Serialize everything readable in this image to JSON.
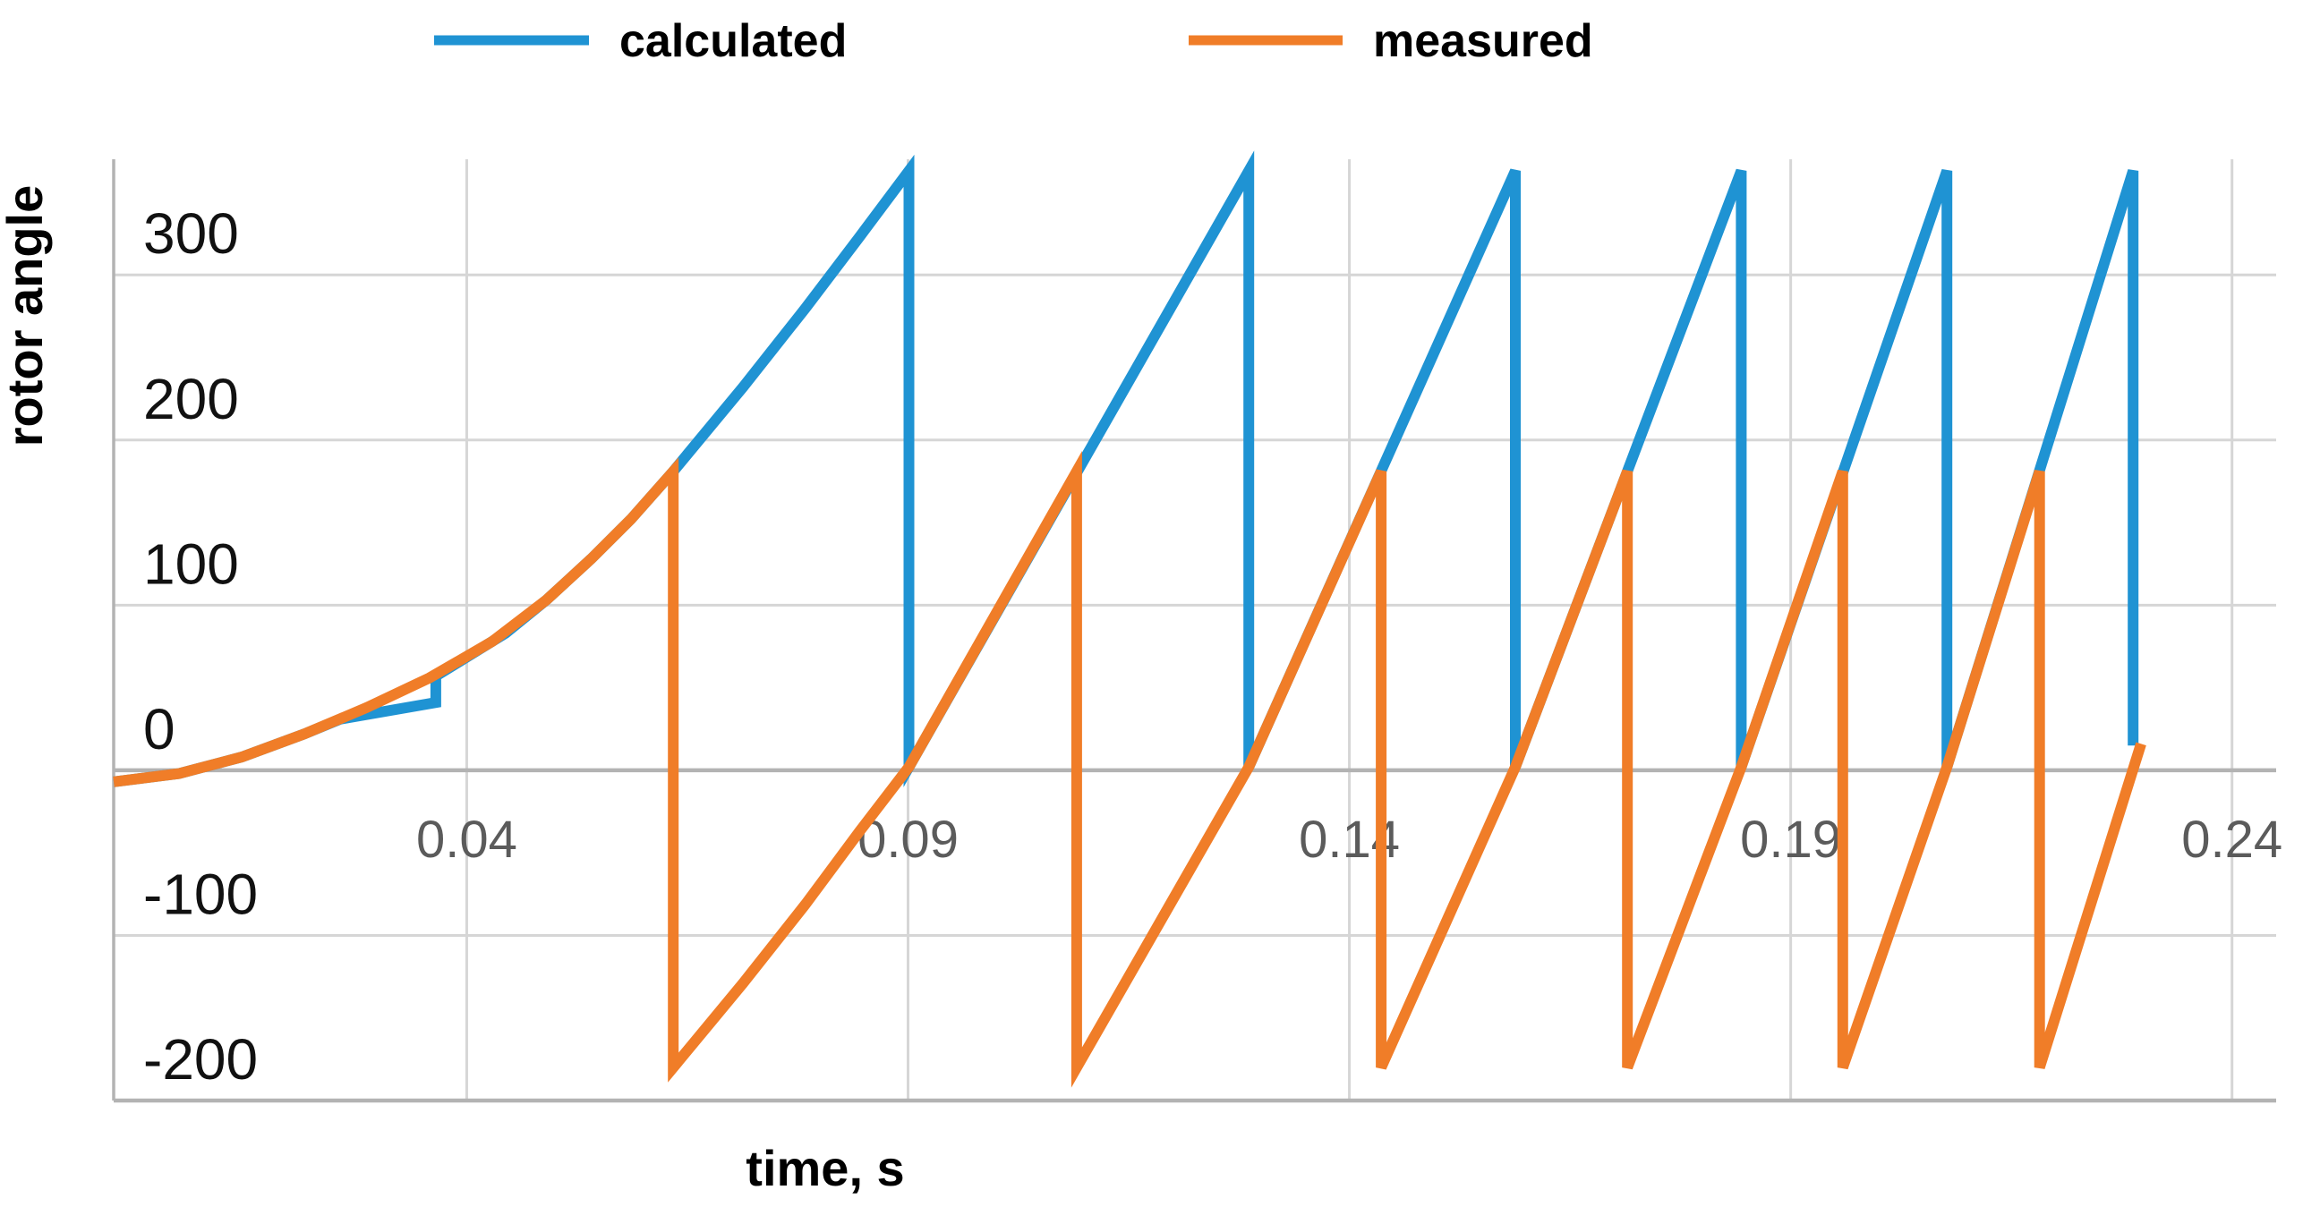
{
  "figure": {
    "background": "#ffffff"
  },
  "legend": {
    "position": "top",
    "items": [
      {
        "label": "calculated",
        "color": "#1f93d3"
      },
      {
        "label": "measured",
        "color": "#f07d28"
      }
    ]
  },
  "axes": {
    "y_title": "rotor angle",
    "x_title": "time, s",
    "y_tick_labels": [
      "300",
      "200",
      "100",
      "0",
      "-100",
      "-200"
    ],
    "x_tick_labels": [
      "0.04",
      "0.09",
      "0.14",
      "0.19",
      "0.24"
    ],
    "tick_label_color_x": "#5b5b5b",
    "tick_label_color_y": "#111111",
    "gridline_color": "#d6d6d6",
    "axis_line_color": "#b3b3b3"
  },
  "chart_data": {
    "type": "line",
    "title": "",
    "xlabel": "time, s",
    "ylabel": "rotor angle",
    "xlim": [
      0,
      0.245
    ],
    "ylim": [
      -200,
      370
    ],
    "grid": true,
    "legend_position": "top",
    "x_ticks": [
      {
        "label": "0.04",
        "t": 0.04
      },
      {
        "label": "0.09",
        "t": 0.09
      },
      {
        "label": "0.14",
        "t": 0.14
      },
      {
        "label": "0.19",
        "t": 0.19
      },
      {
        "label": "0.24",
        "t": 0.24
      }
    ],
    "y_ticks": [
      300,
      200,
      100,
      0,
      -100,
      -200
    ],
    "series": [
      {
        "name": "calculated",
        "color": "#1f93d3",
        "wrap_range_deg": "0 to 360",
        "points": [
          [
            0.0,
            -7
          ],
          [
            0.0074,
            -2
          ],
          [
            0.0145,
            8
          ],
          [
            0.0216,
            22
          ],
          [
            0.0257,
            31
          ],
          [
            0.0365,
            41
          ],
          [
            0.0365,
            57
          ],
          [
            0.0444,
            83
          ],
          [
            0.049,
            103
          ],
          [
            0.0541,
            128
          ],
          [
            0.0586,
            152
          ],
          [
            0.0634,
            181
          ],
          [
            0.0713,
            232
          ],
          [
            0.0784,
            280
          ],
          [
            0.0845,
            323
          ],
          [
            0.0901,
            363
          ],
          [
            0.0901,
            2
          ],
          [
            0.1286,
            363
          ],
          [
            0.1286,
            2
          ],
          [
            0.1588,
            363
          ],
          [
            0.1588,
            2
          ],
          [
            0.1844,
            363
          ],
          [
            0.1844,
            2
          ],
          [
            0.2077,
            363
          ],
          [
            0.2077,
            2
          ],
          [
            0.2288,
            363
          ],
          [
            0.2288,
            15
          ]
        ]
      },
      {
        "name": "measured",
        "color": "#f07d28",
        "wrap_range_deg": "-180 to 180",
        "points": [
          [
            0.0,
            -7
          ],
          [
            0.0074,
            -2
          ],
          [
            0.0145,
            8
          ],
          [
            0.0216,
            22
          ],
          [
            0.0287,
            38
          ],
          [
            0.0358,
            56
          ],
          [
            0.0429,
            78
          ],
          [
            0.049,
            103
          ],
          [
            0.0541,
            128
          ],
          [
            0.0586,
            152
          ],
          [
            0.0634,
            181
          ],
          [
            0.0634,
            -180
          ],
          [
            0.0713,
            -129
          ],
          [
            0.0784,
            -81
          ],
          [
            0.0845,
            -37
          ],
          [
            0.0901,
            2
          ],
          [
            0.1091,
            181
          ],
          [
            0.1091,
            -180
          ],
          [
            0.1286,
            2
          ],
          [
            0.1436,
            181
          ],
          [
            0.1436,
            -180
          ],
          [
            0.1588,
            2
          ],
          [
            0.1715,
            181
          ],
          [
            0.1715,
            -180
          ],
          [
            0.1844,
            2
          ],
          [
            0.1959,
            181
          ],
          [
            0.1959,
            -180
          ],
          [
            0.2077,
            2
          ],
          [
            0.2182,
            181
          ],
          [
            0.2182,
            -180
          ],
          [
            0.2297,
            16
          ]
        ]
      }
    ]
  }
}
